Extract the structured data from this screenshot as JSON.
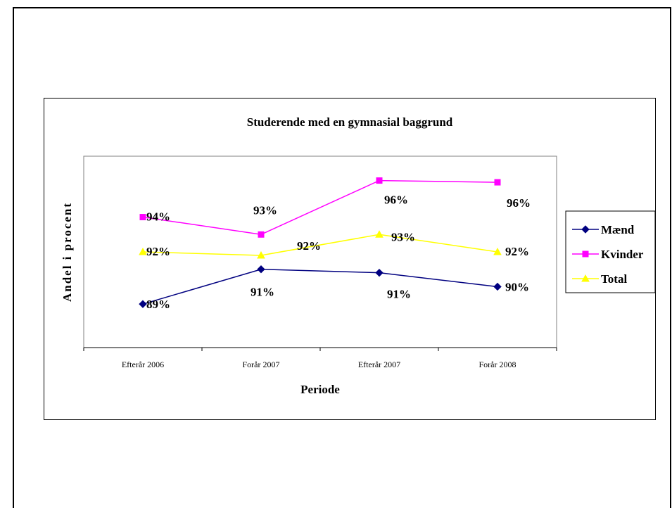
{
  "chart_data": {
    "type": "line",
    "title": "Studerende med en gymnasial baggrund",
    "xlabel": "Periode",
    "ylabel": "Andel i procent",
    "categories": [
      "Efterår 2006",
      "Forår 2007",
      "Efterår 2007",
      "Forår 2008"
    ],
    "ylim": [
      0.865,
      0.975
    ],
    "grid": false,
    "legend_position": "right",
    "series": [
      {
        "name": "Mænd",
        "color": "#000080",
        "marker": "diamond",
        "values": [
          0.89,
          0.91,
          0.908,
          0.9
        ],
        "labels": [
          "89%",
          "91%",
          "91%",
          "90%"
        ]
      },
      {
        "name": "Kvinder",
        "color": "#FF00FF",
        "marker": "square",
        "values": [
          0.94,
          0.93,
          0.961,
          0.96
        ],
        "labels": [
          "94%",
          "93%",
          "96%",
          "96%"
        ]
      },
      {
        "name": "Total",
        "color": "#FFFF00",
        "marker": "triangle",
        "values": [
          0.92,
          0.918,
          0.93,
          0.92
        ],
        "labels": [
          "92%",
          "92%",
          "93%",
          "92%"
        ]
      }
    ]
  }
}
